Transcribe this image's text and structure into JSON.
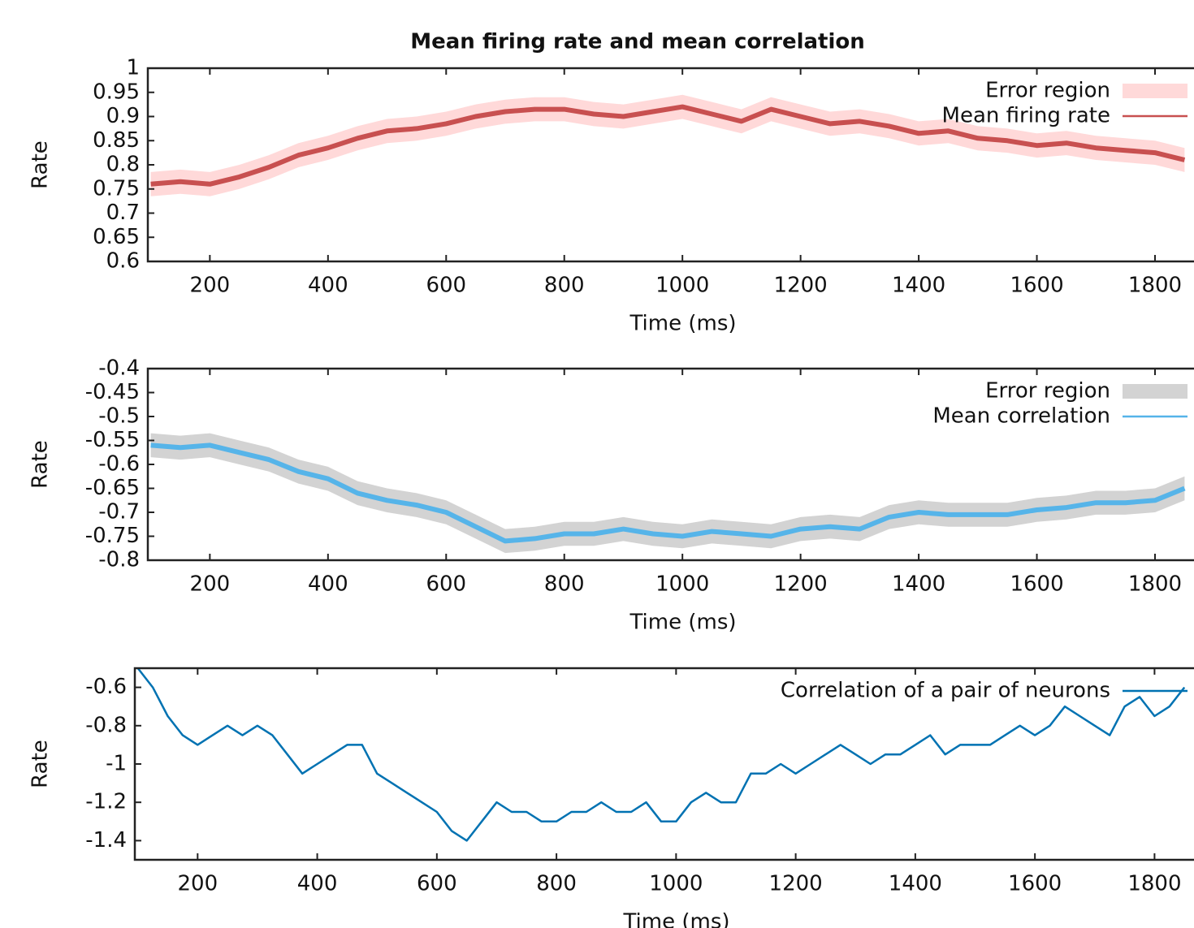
{
  "chart_data": [
    {
      "type": "line",
      "title": "Mean firing rate and mean correlation",
      "xlabel": "Time (ms)",
      "ylabel": "Rate",
      "xlim": [
        95,
        1866
      ],
      "xticks": [
        200,
        400,
        600,
        800,
        1000,
        1200,
        1400,
        1600,
        1800
      ],
      "ylim": [
        0.6,
        1
      ],
      "yticks": [
        0.6,
        0.65,
        0.7,
        0.75,
        0.8,
        0.85,
        0.9,
        0.95,
        1
      ],
      "legend": "top-right",
      "x": [
        100,
        150,
        200,
        250,
        300,
        350,
        400,
        450,
        500,
        550,
        600,
        650,
        700,
        750,
        800,
        850,
        900,
        950,
        1000,
        1050,
        1100,
        1150,
        1200,
        1250,
        1300,
        1350,
        1400,
        1450,
        1500,
        1550,
        1600,
        1650,
        1700,
        1750,
        1800,
        1850
      ],
      "series": [
        {
          "name": "Error region",
          "color": "#ffd9d9",
          "lower": [
            0.735,
            0.74,
            0.735,
            0.75,
            0.77,
            0.795,
            0.81,
            0.83,
            0.845,
            0.85,
            0.86,
            0.875,
            0.885,
            0.89,
            0.89,
            0.88,
            0.875,
            0.885,
            0.895,
            0.88,
            0.865,
            0.89,
            0.875,
            0.86,
            0.865,
            0.855,
            0.84,
            0.845,
            0.83,
            0.825,
            0.815,
            0.82,
            0.81,
            0.805,
            0.8,
            0.785
          ],
          "upper": [
            0.785,
            0.79,
            0.785,
            0.8,
            0.82,
            0.845,
            0.86,
            0.88,
            0.895,
            0.9,
            0.91,
            0.925,
            0.935,
            0.94,
            0.94,
            0.93,
            0.925,
            0.935,
            0.945,
            0.93,
            0.915,
            0.94,
            0.925,
            0.91,
            0.915,
            0.905,
            0.89,
            0.895,
            0.88,
            0.875,
            0.865,
            0.87,
            0.86,
            0.855,
            0.85,
            0.835
          ]
        },
        {
          "name": "Mean firing rate",
          "color": "#c85050",
          "values": [
            0.76,
            0.765,
            0.76,
            0.775,
            0.795,
            0.82,
            0.835,
            0.855,
            0.87,
            0.875,
            0.885,
            0.9,
            0.91,
            0.915,
            0.915,
            0.905,
            0.9,
            0.91,
            0.92,
            0.905,
            0.89,
            0.915,
            0.9,
            0.885,
            0.89,
            0.88,
            0.865,
            0.87,
            0.855,
            0.85,
            0.84,
            0.845,
            0.835,
            0.83,
            0.825,
            0.81
          ]
        }
      ]
    },
    {
      "type": "line",
      "xlabel": "Time (ms)",
      "ylabel": "Rate",
      "xlim": [
        95,
        1866
      ],
      "xticks": [
        200,
        400,
        600,
        800,
        1000,
        1200,
        1400,
        1600,
        1800
      ],
      "ylim": [
        -0.8,
        -0.4
      ],
      "yticks": [
        -0.8,
        -0.75,
        -0.7,
        -0.65,
        -0.6,
        -0.55,
        -0.5,
        -0.45,
        -0.4
      ],
      "legend": "top-right",
      "x": [
        100,
        150,
        200,
        250,
        300,
        350,
        400,
        450,
        500,
        550,
        600,
        650,
        700,
        750,
        800,
        850,
        900,
        950,
        1000,
        1050,
        1100,
        1150,
        1200,
        1250,
        1300,
        1350,
        1400,
        1450,
        1500,
        1550,
        1600,
        1650,
        1700,
        1750,
        1800,
        1850
      ],
      "series": [
        {
          "name": "Error region",
          "color": "#d3d3d3",
          "lower": [
            -0.585,
            -0.59,
            -0.585,
            -0.6,
            -0.615,
            -0.64,
            -0.655,
            -0.685,
            -0.7,
            -0.71,
            -0.725,
            -0.755,
            -0.785,
            -0.78,
            -0.77,
            -0.77,
            -0.76,
            -0.77,
            -0.775,
            -0.765,
            -0.77,
            -0.775,
            -0.76,
            -0.755,
            -0.76,
            -0.735,
            -0.725,
            -0.73,
            -0.73,
            -0.73,
            -0.72,
            -0.715,
            -0.705,
            -0.705,
            -0.7,
            -0.675
          ],
          "upper": [
            -0.535,
            -0.54,
            -0.535,
            -0.55,
            -0.565,
            -0.59,
            -0.605,
            -0.635,
            -0.65,
            -0.66,
            -0.675,
            -0.705,
            -0.735,
            -0.73,
            -0.72,
            -0.72,
            -0.71,
            -0.72,
            -0.725,
            -0.715,
            -0.72,
            -0.725,
            -0.71,
            -0.705,
            -0.71,
            -0.685,
            -0.675,
            -0.68,
            -0.68,
            -0.68,
            -0.67,
            -0.665,
            -0.655,
            -0.655,
            -0.65,
            -0.625
          ]
        },
        {
          "name": "Mean correlation",
          "color": "#56b4e9",
          "values": [
            -0.56,
            -0.565,
            -0.56,
            -0.575,
            -0.59,
            -0.615,
            -0.63,
            -0.66,
            -0.675,
            -0.685,
            -0.7,
            -0.73,
            -0.76,
            -0.755,
            -0.745,
            -0.745,
            -0.735,
            -0.745,
            -0.75,
            -0.74,
            -0.745,
            -0.75,
            -0.735,
            -0.73,
            -0.735,
            -0.71,
            -0.7,
            -0.705,
            -0.705,
            -0.705,
            -0.695,
            -0.69,
            -0.68,
            -0.68,
            -0.675,
            -0.65
          ]
        }
      ]
    },
    {
      "type": "line",
      "xlabel": "Time (ms)",
      "ylabel": "Rate",
      "xlim": [
        95,
        1866
      ],
      "xticks": [
        200,
        400,
        600,
        800,
        1000,
        1200,
        1400,
        1600,
        1800
      ],
      "ylim": [
        -1.5,
        -0.5
      ],
      "yticks": [
        -1.4,
        -1.2,
        -1,
        -0.8,
        -0.6
      ],
      "legend": "top-right",
      "x": [
        100,
        125,
        150,
        175,
        200,
        225,
        250,
        275,
        300,
        325,
        350,
        375,
        400,
        425,
        450,
        475,
        500,
        525,
        550,
        575,
        600,
        625,
        650,
        675,
        700,
        725,
        750,
        775,
        800,
        825,
        850,
        875,
        900,
        925,
        950,
        975,
        1000,
        1025,
        1050,
        1075,
        1100,
        1125,
        1150,
        1175,
        1200,
        1225,
        1250,
        1275,
        1300,
        1325,
        1350,
        1375,
        1400,
        1425,
        1450,
        1475,
        1500,
        1525,
        1550,
        1575,
        1600,
        1625,
        1650,
        1675,
        1700,
        1725,
        1750,
        1775,
        1800,
        1825,
        1850
      ],
      "series": [
        {
          "name": "Correlation of a pair of neurons",
          "color": "#0072b2",
          "values": [
            -0.5,
            -0.6,
            -0.75,
            -0.85,
            -0.9,
            -0.85,
            -0.8,
            -0.85,
            -0.8,
            -0.85,
            -0.95,
            -1.05,
            -1.0,
            -0.95,
            -0.9,
            -0.9,
            -1.05,
            -1.1,
            -1.15,
            -1.2,
            -1.25,
            -1.35,
            -1.4,
            -1.3,
            -1.2,
            -1.25,
            -1.25,
            -1.3,
            -1.3,
            -1.25,
            -1.25,
            -1.2,
            -1.25,
            -1.25,
            -1.2,
            -1.3,
            -1.3,
            -1.2,
            -1.15,
            -1.2,
            -1.2,
            -1.05,
            -1.05,
            -1.0,
            -1.05,
            -1.0,
            -0.95,
            -0.9,
            -0.95,
            -1.0,
            -0.95,
            -0.95,
            -0.9,
            -0.85,
            -0.95,
            -0.9,
            -0.9,
            -0.9,
            -0.85,
            -0.8,
            -0.85,
            -0.8,
            -0.7,
            -0.75,
            -0.8,
            -0.85,
            -0.7,
            -0.65,
            -0.75,
            -0.7,
            -0.6
          ]
        }
      ]
    }
  ]
}
